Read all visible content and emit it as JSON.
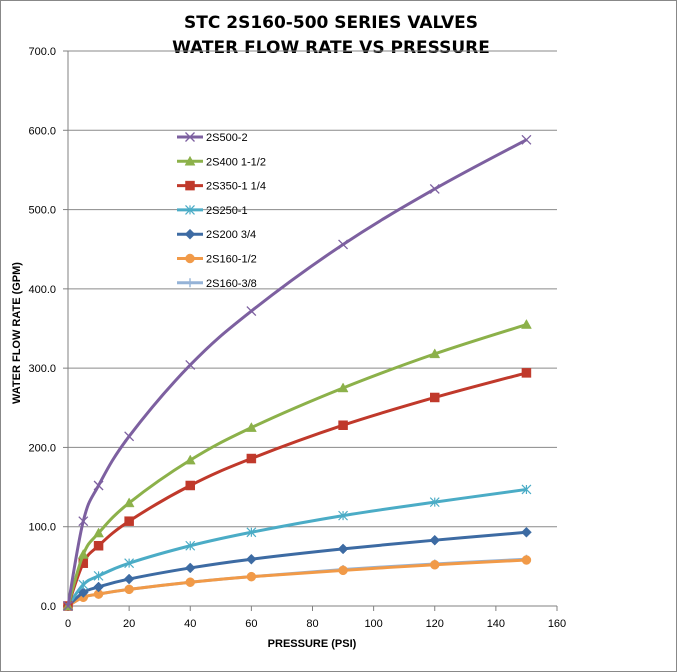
{
  "chart_data": {
    "type": "line",
    "title": [
      "STC 2S160-500 SERIES VALVES",
      "WATER FLOW RATE VS PRESSURE"
    ],
    "xlabel": "PRESSURE (PSI)",
    "ylabel": "WATER FLOW RATE (GPM)",
    "xlim": [
      0,
      160
    ],
    "ylim": [
      0,
      700
    ],
    "x_ticks": [
      "0",
      "20",
      "40",
      "60",
      "80",
      "100",
      "120",
      "140",
      "160"
    ],
    "y_ticks": [
      "0.0",
      "100.0",
      "200.0",
      "300.0",
      "400.0",
      "500.0",
      "600.0",
      "700.0"
    ],
    "grid": "horizontal",
    "legend_position": "upper-left inside plot",
    "series": [
      {
        "name": "2S500-2",
        "color": "#7d60a0",
        "marker": "x",
        "x": [
          0,
          5,
          10,
          20,
          40,
          60,
          90,
          120,
          150
        ],
        "y": [
          0,
          107,
          152,
          214,
          304,
          372,
          456,
          526,
          588
        ]
      },
      {
        "name": "2S400 1-1/2",
        "color": "#8cb14a",
        "marker": "triangle",
        "x": [
          0,
          5,
          10,
          20,
          40,
          60,
          90,
          120,
          150
        ],
        "y": [
          0,
          65,
          92,
          130,
          184,
          225,
          275,
          318,
          355
        ]
      },
      {
        "name": "2S350-1 1/4",
        "color": "#c0392b",
        "marker": "square",
        "x": [
          0,
          5,
          10,
          20,
          40,
          60,
          90,
          120,
          150
        ],
        "y": [
          0,
          54,
          76,
          107,
          152,
          186,
          228,
          263,
          294
        ]
      },
      {
        "name": "2S250-1",
        "color": "#4bacc6",
        "marker": "star",
        "x": [
          0,
          5,
          10,
          20,
          40,
          60,
          90,
          120,
          150
        ],
        "y": [
          0,
          27,
          38,
          54,
          76,
          93,
          114,
          131,
          147
        ]
      },
      {
        "name": "2S200 3/4",
        "color": "#3d6ba3",
        "marker": "diamond",
        "x": [
          0,
          5,
          10,
          20,
          40,
          60,
          90,
          120,
          150
        ],
        "y": [
          0,
          17,
          24,
          34,
          48,
          59,
          72,
          83,
          93
        ]
      },
      {
        "name": "2S160-1/2",
        "color": "#f19a48",
        "marker": "circle",
        "x": [
          0,
          5,
          10,
          20,
          40,
          60,
          90,
          120,
          150
        ],
        "y": [
          0,
          11,
          15,
          21,
          30,
          37,
          45,
          52,
          58
        ]
      },
      {
        "name": "2S160-3/8",
        "color": "#95b3d7",
        "marker": "plus",
        "x": [
          0,
          5,
          10,
          20,
          40,
          60,
          90,
          120,
          150
        ],
        "y": [
          0,
          11,
          15,
          21,
          30,
          37,
          46,
          53,
          59
        ]
      }
    ]
  }
}
